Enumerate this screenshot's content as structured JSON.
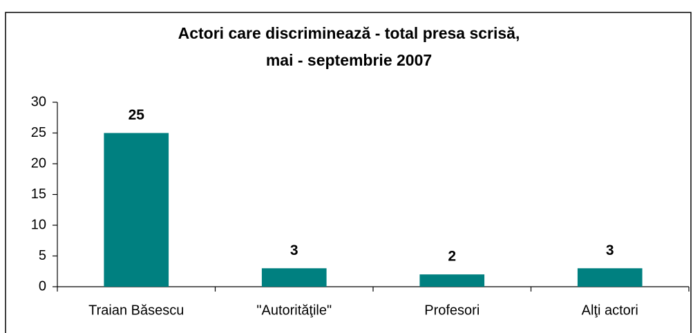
{
  "chart_data": {
    "type": "bar",
    "title": [
      "Actori care discriminează - total presa scrisă,",
      "mai - septembrie 2007"
    ],
    "categories": [
      "Traian Băsescu",
      "\"Autorităţile\"",
      "Profesori",
      "Alţi actori"
    ],
    "values": [
      25,
      3,
      2,
      3
    ],
    "color": "#008080",
    "ylim": [
      0,
      30
    ],
    "yticks": [
      0,
      5,
      10,
      15,
      20,
      25,
      30
    ]
  }
}
